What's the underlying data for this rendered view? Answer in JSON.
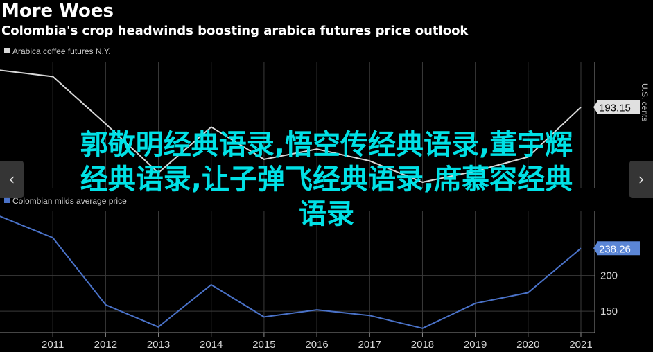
{
  "header": {
    "title": "More Woes",
    "subtitle": "Colombia's crop headwinds boosting arabica futures price outlook"
  },
  "overlay": {
    "line1": "郭敬明经典语录,悟空传经典语录,董宇辉",
    "line2": "经典语录,让子弹飞经典语录,席慕容经典",
    "line3": "语录"
  },
  "nav": {
    "prev_icon": "‹",
    "next_icon": "›"
  },
  "source": "U.S. cents",
  "colors": {
    "background": "#000000",
    "top_line": "#d9d9d9",
    "bottom_line": "#4a72c8",
    "grid": "#3a3a3a",
    "overlay_text": "#00e1e6"
  },
  "chart_data": [
    {
      "type": "line",
      "series": [
        {
          "name": "Arabica coffee futures N.Y.",
          "x": [
            2010,
            2011,
            2012,
            2013,
            2014,
            2015,
            2016,
            2017,
            2018,
            2019,
            2020,
            2021
          ],
          "values": [
            240,
            232,
            172,
            110,
            168,
            127,
            140,
            125,
            98,
            112,
            130,
            193.15
          ]
        }
      ],
      "last_value_label": "193.15",
      "x_ticks": [
        "2011",
        "2012",
        "2013",
        "2014",
        "2015",
        "2016",
        "2017",
        "2018",
        "2019",
        "2020",
        "2021"
      ],
      "y_ticks": [],
      "ylim": [
        90,
        250
      ]
    },
    {
      "type": "line",
      "series": [
        {
          "name": "Colombian milds average price",
          "x": [
            2010,
            2011,
            2012,
            2013,
            2014,
            2015,
            2016,
            2017,
            2018,
            2019,
            2020,
            2021
          ],
          "values": [
            283,
            253,
            159,
            128,
            187,
            142,
            152,
            144,
            126,
            161,
            176,
            238.26
          ]
        }
      ],
      "last_value_label": "238.26",
      "x_ticks": [
        "2011",
        "2012",
        "2013",
        "2014",
        "2015",
        "2016",
        "2017",
        "2018",
        "2019",
        "2020",
        "2021"
      ],
      "y_ticks": [
        "150",
        "200"
      ],
      "ylim": [
        120,
        290
      ]
    }
  ]
}
